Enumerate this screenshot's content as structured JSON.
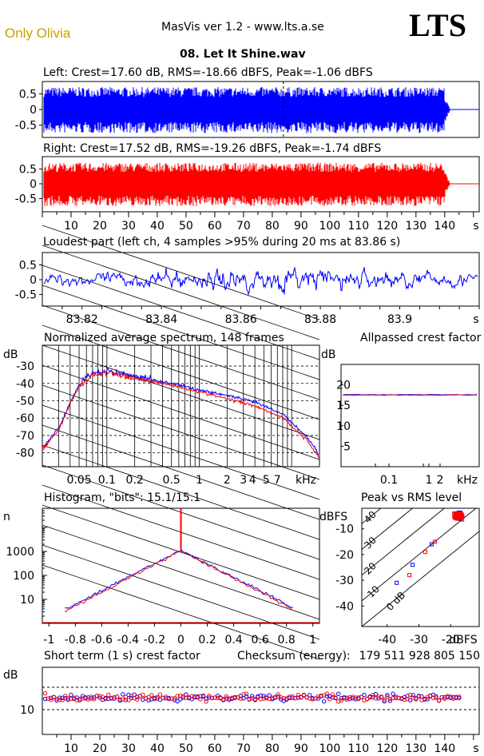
{
  "header": {
    "user_label": "Only Olivia",
    "app_title": "MasVis ver 1.2 - www.lts.a.se",
    "logo": "LTS",
    "file_name": "08. Let It Shine.wav"
  },
  "colors": {
    "left": "#0000ff",
    "right": "#ff0000",
    "user_label": "#c8a000"
  },
  "chart_data": [
    {
      "type": "line",
      "id": "left_waveform",
      "title": "Left: Crest=17.60 dB, RMS=-18.66 dBFS, Peak=-1.06 dBFS",
      "yticks": [
        "0.5",
        "0",
        "-0.5"
      ],
      "ylim": [
        -1,
        1
      ],
      "xlim": [
        0,
        152
      ],
      "duration_s": 142,
      "marker_at_s": 83.86,
      "crest_db": 17.6,
      "rms_dbfs": -18.66,
      "peak_dbfs": -1.06
    },
    {
      "type": "line",
      "id": "right_waveform",
      "title": "Right: Crest=17.52 dB, RMS=-19.26 dBFS, Peak=-1.74 dBFS",
      "yticks": [
        "0.5",
        "0",
        "-0.5"
      ],
      "ylim": [
        -1,
        1
      ],
      "xlim": [
        0,
        152
      ],
      "xticks": [
        "10",
        "20",
        "30",
        "40",
        "50",
        "60",
        "70",
        "80",
        "90",
        "100",
        "110",
        "120",
        "130",
        "140",
        "s"
      ],
      "crest_db": 17.52,
      "rms_dbfs": -19.26,
      "peak_dbfs": -1.74
    },
    {
      "type": "line",
      "id": "loudest_part",
      "title": "Loudest part (left  ch, 4 samples >95% during 20 ms at 83.86 s)",
      "yticks": [
        "0.5",
        "0",
        "-0.5"
      ],
      "xticks": [
        "83.82",
        "83.84",
        "83.86",
        "83.88",
        "83.9",
        "s"
      ],
      "xlim": [
        83.81,
        83.92
      ]
    },
    {
      "type": "line",
      "id": "avg_spectrum",
      "title": "Normalized average spectrum, 148 frames",
      "ylabel": "dB",
      "yticks": [
        "-30",
        "-40",
        "-50",
        "-60",
        "-70",
        "-80"
      ],
      "xticks": [
        "0.05",
        "0.1",
        "0.2",
        "0.5",
        "1",
        "2",
        "3",
        "4",
        "5",
        "7",
        "kHz"
      ],
      "xlim_khz": [
        0.02,
        20
      ],
      "ylim": [
        -88,
        -18
      ],
      "series": [
        {
          "color": "blue",
          "x": [
            0.02,
            0.03,
            0.04,
            0.05,
            0.07,
            0.1,
            0.2,
            0.5,
            1,
            2,
            4,
            8,
            15,
            20
          ],
          "y": [
            -77,
            -65,
            -50,
            -40,
            -34,
            -33,
            -36,
            -40,
            -44,
            -47,
            -51,
            -58,
            -72,
            -82
          ]
        },
        {
          "color": "red",
          "x": [
            0.02,
            0.03,
            0.04,
            0.05,
            0.07,
            0.1,
            0.2,
            0.5,
            1,
            2,
            4,
            8,
            15,
            20
          ],
          "y": [
            -78,
            -66,
            -51,
            -41,
            -35,
            -34,
            -37,
            -41,
            -45,
            -49,
            -53,
            -60,
            -74,
            -84
          ]
        }
      ]
    },
    {
      "type": "line",
      "id": "allpassed_crest",
      "title": "Allpassed crest factor",
      "ylabel": "dB",
      "yticks": [
        "20",
        "15",
        "10",
        "5"
      ],
      "xticks": [
        "0.1",
        "1",
        "2",
        "kHz"
      ],
      "ylim": [
        0,
        25
      ],
      "series": [
        {
          "color": "blue",
          "value": 17.6
        },
        {
          "color": "red",
          "value": 17.5
        }
      ]
    },
    {
      "type": "line",
      "id": "histogram",
      "title": "Histogram, \"bits\": 15.1/15.1",
      "ylabel": "n",
      "yticks": [
        "1000",
        "100",
        "10"
      ],
      "xticks": [
        "-1",
        "-0.8",
        "-0.6",
        "-0.4",
        "-0.2",
        "0",
        "0.2",
        "0.4",
        "0.6",
        "0.8",
        "1"
      ],
      "xlim": [
        -1.05,
        1.05
      ],
      "bits_left": 15.1,
      "bits_right": 15.1
    },
    {
      "type": "scatter",
      "id": "peak_vs_rms",
      "title": "Peak vs RMS level",
      "ylabel": "dBFS",
      "xlabel": "dBFS",
      "yticks": [
        "-10",
        "-20",
        "-30",
        "-40"
      ],
      "xticks": [
        "-40",
        "-30",
        "-20"
      ],
      "diag_labels": [
        "40",
        "30",
        "20",
        "10",
        "0 dB"
      ],
      "xlim": [
        -48,
        -11
      ],
      "ylim": [
        -48,
        -2
      ]
    },
    {
      "type": "scatter",
      "id": "short_term_crest",
      "title": "Short term (1 s) crest factor",
      "ylabel": "dB",
      "yticks": [
        "10"
      ],
      "xticks": [
        "10",
        "20",
        "30",
        "40",
        "50",
        "60",
        "70",
        "80",
        "90",
        "100",
        "110",
        "120",
        "130",
        "140",
        "s"
      ],
      "xlim": [
        0,
        152
      ],
      "checksum_label": "Checksum (energy):",
      "checksum_value": "179 511 928 805 150"
    }
  ]
}
